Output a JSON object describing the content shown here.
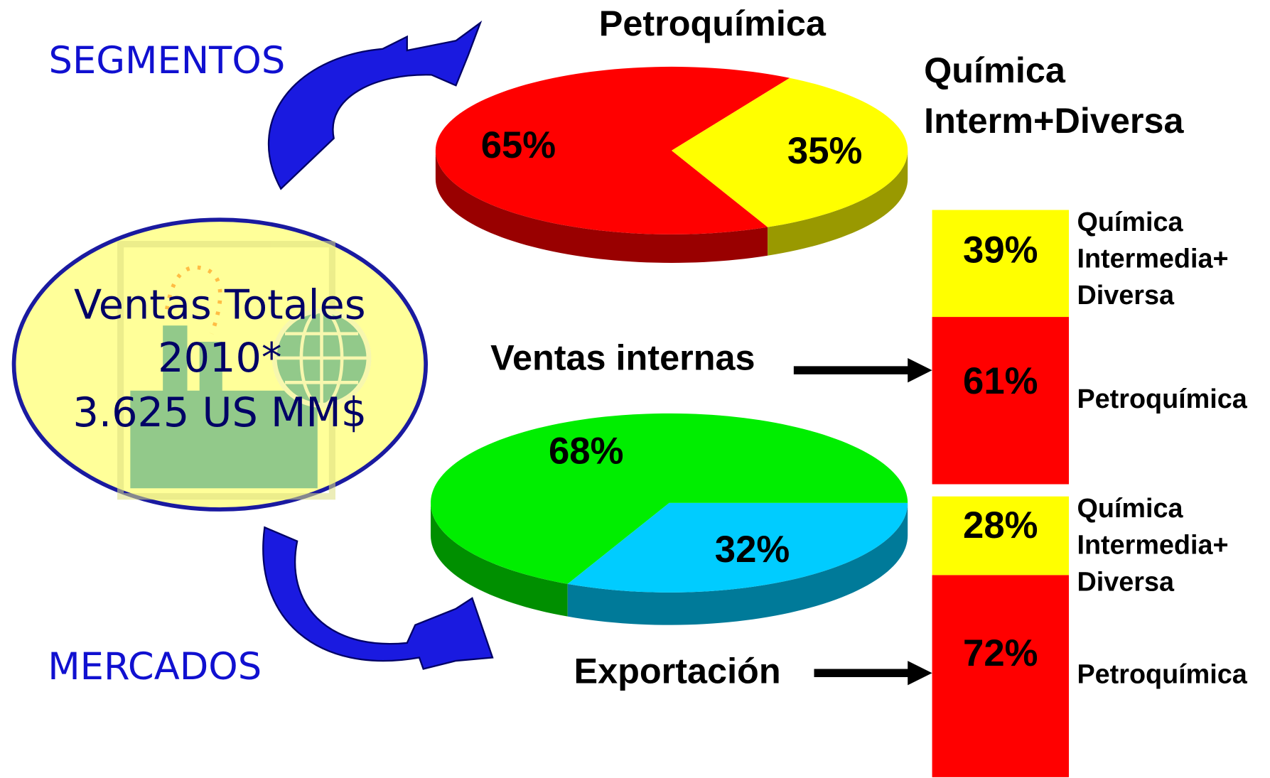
{
  "header": {
    "segments": "SEGMENTOS",
    "markets": "MERCADOS",
    "center": [
      "Ventas Totales",
      "2010*",
      "3.625 US MM$"
    ]
  },
  "chart_data": [
    {
      "type": "pie",
      "categories": [
        "Petroquímica",
        "Química\nInterm+Diversa"
      ],
      "values": [
        65,
        35
      ],
      "value_labels": [
        "65%",
        "35%"
      ],
      "colors": [
        "#ff0000",
        "#ffff00"
      ]
    },
    {
      "type": "pie",
      "categories": [
        "Ventas internas",
        "Exportación"
      ],
      "values": [
        68,
        32
      ],
      "value_labels": [
        "68%",
        "32%"
      ],
      "colors": [
        "#00ee00",
        "#00ccff"
      ]
    },
    {
      "type": "bar",
      "stacked": true,
      "ylim": [
        0,
        100
      ],
      "series": [
        {
          "name": "Petroquímica",
          "color": "#ff0000",
          "values": [
            61
          ],
          "value_labels": [
            "61%"
          ]
        },
        {
          "name": "Química\nIntermedia+\nDiversa",
          "color": "#ffff00",
          "values": [
            39
          ],
          "value_labels": [
            "39%"
          ]
        }
      ]
    },
    {
      "type": "bar",
      "stacked": true,
      "ylim": [
        0,
        100
      ],
      "series": [
        {
          "name": "Petroquímica",
          "color": "#ff0000",
          "values": [
            72
          ],
          "value_labels": [
            "72%"
          ]
        },
        {
          "name": "Química\nIntermedia+\nDiversa",
          "color": "#ffff00",
          "values": [
            28
          ],
          "value_labels": [
            "28%"
          ]
        }
      ]
    }
  ]
}
